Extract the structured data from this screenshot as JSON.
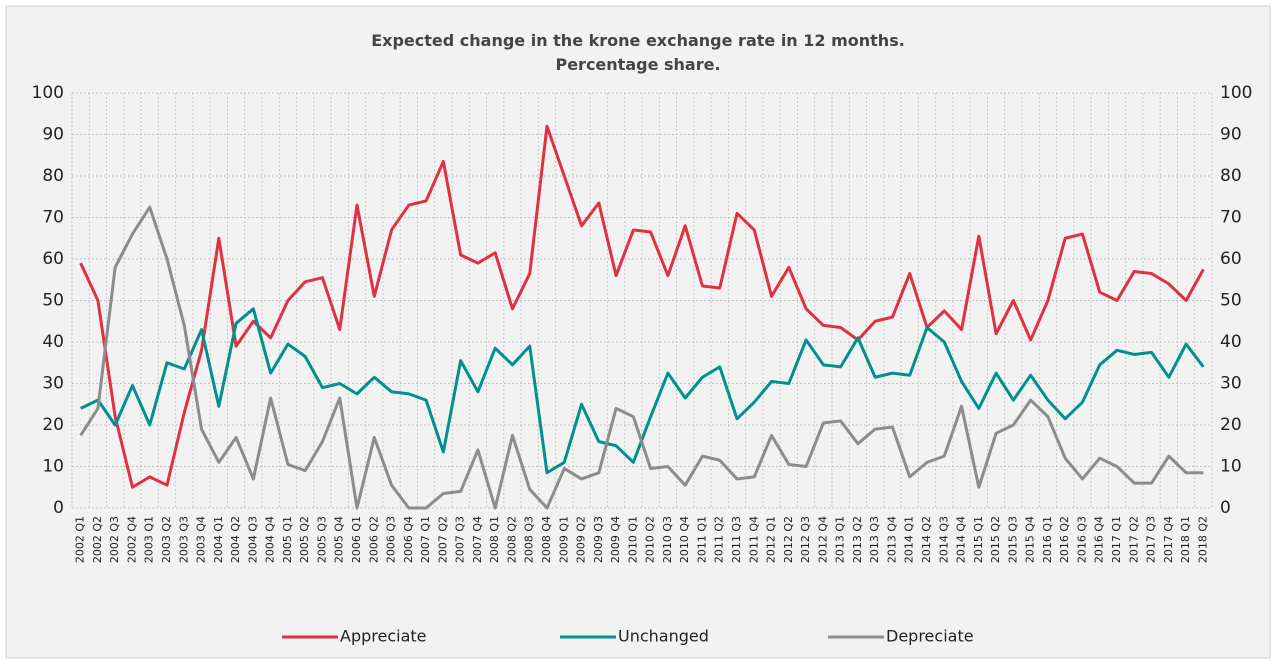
{
  "chart_data": {
    "type": "line",
    "title": [
      "Expected change in the krone exchange rate in 12 months.",
      "Percentage share."
    ],
    "categories": [
      "2002 Q1",
      "2002 Q2",
      "2002 Q3",
      "2002 Q4",
      "2003 Q1",
      "2003 Q2",
      "2003 Q3",
      "2003 Q4",
      "2004 Q1",
      "2004 Q2",
      "2004 Q3",
      "2004 Q4",
      "2005 Q1",
      "2005 Q2",
      "2005 Q3",
      "2005 Q4",
      "2006 Q1",
      "2006 Q2",
      "2006 Q3",
      "2006 Q4",
      "2007 Q1",
      "2007 Q2",
      "2007 Q3",
      "2007 Q4",
      "2008 Q1",
      "2008 Q2",
      "2008 Q3",
      "2008 Q4",
      "2009 Q1",
      "2009 Q2",
      "2009 Q3",
      "2009 Q4",
      "2010 Q1",
      "2010 Q2",
      "2010 Q3",
      "2010 Q4",
      "2011 Q1",
      "2011 Q2",
      "2011 Q3",
      "2011 Q4",
      "2012 Q1",
      "2012 Q2",
      "2012 Q3",
      "2012 Q4",
      "2013 Q1",
      "2013 Q2",
      "2013 Q3",
      "2013 Q4",
      "2014 Q1",
      "2014 Q2",
      "2014 Q3",
      "2014 Q4",
      "2015 Q1",
      "2015 Q2",
      "2015 Q3",
      "2015 Q4",
      "2016 Q1",
      "2016 Q2",
      "2016 Q3",
      "2016 Q4",
      "2017 Q1",
      "2017 Q2",
      "2017 Q3",
      "2017 Q4",
      "2018 Q1",
      "2018 Q2"
    ],
    "series": [
      {
        "name": "Appreciate",
        "color": "#e03143",
        "values": [
          59,
          50,
          22,
          5,
          7.5,
          5.5,
          23,
          38,
          65,
          39,
          45,
          41,
          50,
          54.5,
          55.5,
          43,
          73,
          51,
          67,
          73,
          74,
          83.5,
          61,
          59,
          61.5,
          48,
          56.5,
          92,
          80,
          68,
          73.5,
          56,
          67,
          66.5,
          56,
          68,
          53.5,
          53,
          71,
          67,
          51,
          58,
          48,
          44,
          43.5,
          40.5,
          45,
          46,
          56.5,
          43.5,
          47.5,
          43,
          65.5,
          42,
          50,
          40.5,
          50,
          65,
          66,
          52,
          50,
          57,
          56.5,
          54,
          50,
          57.5
        ]
      },
      {
        "name": "Unchanged",
        "color": "#00908e",
        "values": [
          24,
          26,
          20,
          29.5,
          20,
          35,
          33.5,
          43,
          24.5,
          44.5,
          48,
          32.5,
          39.5,
          36.5,
          29,
          30,
          27.5,
          31.5,
          28,
          27.5,
          26,
          13.5,
          35.5,
          28,
          38.5,
          34.5,
          39,
          8.5,
          11,
          25,
          16,
          15,
          11,
          22,
          32.5,
          26.5,
          31.5,
          34,
          21.5,
          25.5,
          30.5,
          30,
          40.5,
          34.5,
          34,
          41,
          31.5,
          32.5,
          32,
          43.5,
          40,
          30.5,
          24,
          32.5,
          26,
          32,
          26,
          21.5,
          25.5,
          34.5,
          38,
          37,
          37.5,
          31.5,
          39.5,
          34
        ]
      },
      {
        "name": "Depreciate",
        "color": "#8c8c8c",
        "values": [
          17.5,
          24,
          58,
          66,
          72.5,
          60,
          44,
          19,
          11,
          17,
          7,
          26.5,
          10.5,
          9,
          16,
          26.5,
          0,
          17,
          5.5,
          0,
          0,
          3.5,
          4,
          14,
          0,
          17.5,
          4.5,
          0,
          9.5,
          7,
          8.5,
          24,
          22,
          9.5,
          10,
          5.5,
          12.5,
          11.5,
          7,
          7.5,
          17.5,
          10.5,
          10,
          20.5,
          21,
          15.5,
          19,
          19.5,
          7.5,
          11,
          12.5,
          24.5,
          5,
          18,
          20,
          26,
          22,
          12,
          7,
          12,
          10,
          6,
          6,
          12.5,
          8.5,
          8.5
        ]
      }
    ],
    "ylim": [
      0,
      100
    ],
    "yticks": [
      0,
      10,
      20,
      30,
      40,
      50,
      60,
      70,
      80,
      90,
      100
    ],
    "y2lim": [
      0,
      100
    ],
    "y2ticks": [
      0,
      10,
      20,
      30,
      40,
      50,
      60,
      70,
      80,
      90,
      100
    ],
    "grid": true,
    "legend": "bottom"
  }
}
